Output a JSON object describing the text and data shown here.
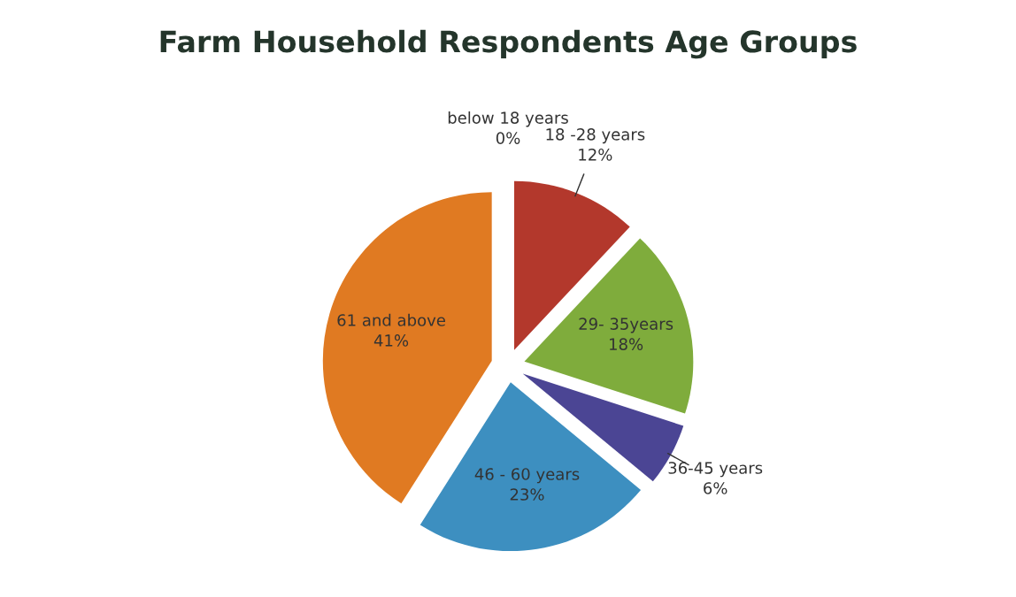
{
  "chart_data": {
    "type": "pie",
    "title": "Farm Household Respondents Age Groups",
    "categories": [
      "below 18 years",
      "18 -28 years",
      "29- 35years",
      "36-45 years",
      "46 - 60 years",
      "61 and above"
    ],
    "values": [
      0,
      12,
      18,
      6,
      23,
      41
    ],
    "value_labels": [
      "0%",
      "12%",
      "18%",
      "6%",
      "23%",
      "41%"
    ],
    "colors": [
      "#4f81bd",
      "#b3382c",
      "#7fac3c",
      "#4b4594",
      "#3d8fc0",
      "#e07a22"
    ]
  }
}
